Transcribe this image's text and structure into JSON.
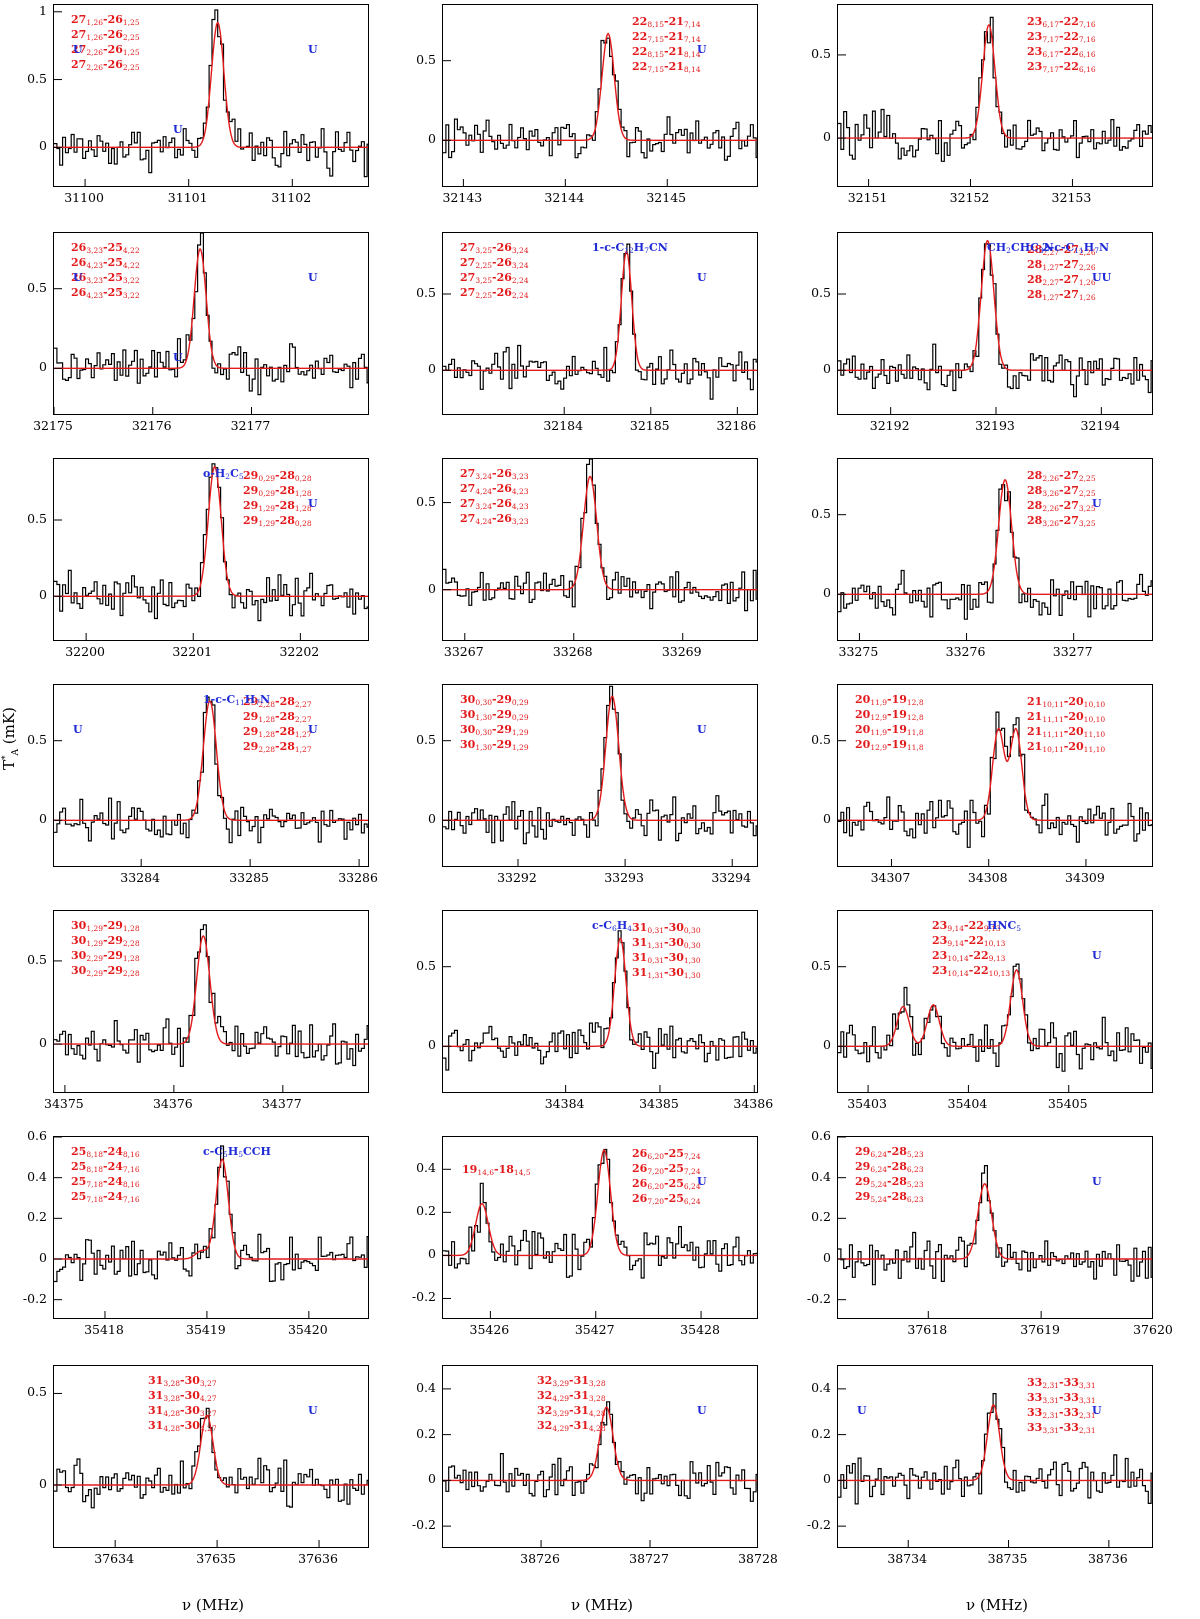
{
  "figure": {
    "ylabel": "T*A (mK)",
    "xlabel": "ν (MHz)",
    "colors": {
      "data": "#000000",
      "model": "#e31a1c",
      "other": "#1f2bd6"
    }
  },
  "chart_data": [
    {
      "id": "p1",
      "type": "line",
      "xlim": [
        31099.7,
        31102.75
      ],
      "ylim": [
        -0.3,
        1.05
      ],
      "xticks": [
        31100,
        31101,
        31102
      ],
      "yticks": [
        0,
        0.5,
        1
      ],
      "lines": [
        {
          "x": 31101.28,
          "h": 0.92,
          "w": 0.06
        }
      ],
      "notes": [
        {
          "color": "red",
          "text": "27(1,26)-26(1,25) / 27(1,26)-26(2,25) / 27(2,26)-26(1,25) / 27(2,26)-26(2,25)",
          "lines": [
            "27_1,26-26_1,25",
            "27_1,26-26_2,25",
            "27_2,26-26_1,25",
            "27_2,26-26_2,25"
          ],
          "pos": "tl"
        },
        {
          "color": "blue",
          "text": "U",
          "lines": [
            "U"
          ],
          "pos": "u1"
        },
        {
          "color": "blue",
          "text": "U",
          "lines": [
            "U"
          ],
          "pos": "u2"
        },
        {
          "color": "blue",
          "text": "U",
          "lines": [
            "U"
          ],
          "pos": "u3"
        }
      ]
    },
    {
      "id": "p2",
      "type": "line",
      "xlim": [
        32142.8,
        32145.9
      ],
      "ylim": [
        -0.3,
        0.85
      ],
      "xticks": [
        32143,
        32144,
        32145
      ],
      "yticks": [
        0,
        0.5
      ],
      "lines": [
        {
          "x": 32144.42,
          "h": 0.67,
          "w": 0.06
        }
      ],
      "notes": [
        {
          "color": "red",
          "lines": [
            "22_8,15-21_7,14",
            "22_7,15-21_7,14",
            "22_8,15-21_8,14",
            "22_7,15-21_8,14"
          ],
          "pos": "tr"
        },
        {
          "color": "blue",
          "lines": [
            "U"
          ],
          "pos": "u1"
        }
      ]
    },
    {
      "id": "p3",
      "type": "line",
      "xlim": [
        32150.7,
        32153.8
      ],
      "ylim": [
        -0.3,
        0.8
      ],
      "xticks": [
        32151,
        32152,
        32153
      ],
      "yticks": [
        0,
        0.5
      ],
      "lines": [
        {
          "x": 32152.18,
          "h": 0.68,
          "w": 0.06
        }
      ],
      "notes": [
        {
          "color": "red",
          "lines": [
            "23_6,17-22_7,16",
            "23_7,17-22_7,16",
            "23_6,17-22_6,16",
            "23_7,17-22_6,16"
          ],
          "pos": "tr"
        }
      ]
    },
    {
      "id": "p4",
      "type": "line",
      "xlim": [
        32175,
        32178.2
      ],
      "ylim": [
        -0.3,
        0.85
      ],
      "xticks": [
        32175,
        32176,
        32177
      ],
      "yticks": [
        0,
        0.5
      ],
      "lines": [
        {
          "x": 32176.48,
          "h": 0.75,
          "w": 0.06
        }
      ],
      "notes": [
        {
          "color": "red",
          "lines": [
            "26_3,23-25_4,22",
            "26_4,23-25_4,22",
            "26_3,23-25_3,22",
            "26_4,23-25_3,22"
          ],
          "pos": "tl"
        },
        {
          "color": "blue",
          "lines": [
            "U"
          ],
          "pos": "u1"
        },
        {
          "color": "blue",
          "lines": [
            "U"
          ],
          "pos": "u2"
        },
        {
          "color": "blue",
          "lines": [
            "U"
          ],
          "pos": "u3"
        }
      ]
    },
    {
      "id": "p5",
      "type": "line",
      "xlim": [
        32182.6,
        32186.25
      ],
      "ylim": [
        -0.3,
        0.9
      ],
      "xticks": [
        32184,
        32185,
        32186
      ],
      "yticks": [
        0,
        0.5
      ],
      "lines": [
        {
          "x": 32184.72,
          "h": 0.78,
          "w": 0.06
        }
      ],
      "notes": [
        {
          "color": "red",
          "lines": [
            "27_3,25-26_3,24",
            "27_2,25-26_3,24",
            "27_3,25-26_2,24",
            "27_2,25-26_2,24"
          ],
          "pos": "tl"
        },
        {
          "color": "blue",
          "lines": [
            "1-c-C12H7CN"
          ],
          "pos": "mol1"
        },
        {
          "color": "blue",
          "lines": [
            "U"
          ],
          "pos": "u1"
        }
      ]
    },
    {
      "id": "p6",
      "type": "line",
      "xlim": [
        32191.5,
        32194.5
      ],
      "ylim": [
        -0.3,
        0.9
      ],
      "xticks": [
        32192,
        32193,
        32194
      ],
      "yticks": [
        0,
        0.5
      ],
      "lines": [
        {
          "x": 32192.92,
          "h": 0.85,
          "w": 0.06
        }
      ],
      "notes": [
        {
          "color": "red",
          "lines": [
            "28_2,27-27_2,26",
            "28_1,27-27_2,26",
            "28_2,27-27_1,26",
            "28_1,27-27_1,26"
          ],
          "pos": "tr"
        },
        {
          "color": "blue",
          "lines": [
            "CH2CHC3N"
          ],
          "pos": "mol1"
        },
        {
          "color": "blue",
          "lines": [
            "2-c-C11H7N"
          ],
          "pos": "mol2"
        },
        {
          "color": "blue",
          "lines": [
            "UU"
          ],
          "pos": "u1"
        }
      ]
    },
    {
      "id": "p7",
      "type": "line",
      "xlim": [
        32199.7,
        32202.65
      ],
      "ylim": [
        -0.3,
        0.9
      ],
      "xticks": [
        32200,
        32201,
        32202
      ],
      "yticks": [
        0,
        0.5
      ],
      "lines": [
        {
          "x": 32201.2,
          "h": 0.85,
          "w": 0.06
        }
      ],
      "notes": [
        {
          "color": "red",
          "lines": [
            "29_0,29-28_0,28",
            "29_0,29-28_1,28",
            "29_1,29-28_1,28",
            "29_1,29-28_0,28"
          ],
          "pos": "tr"
        },
        {
          "color": "blue",
          "lines": [
            "o-H2C5"
          ],
          "pos": "mol1"
        },
        {
          "color": "blue",
          "lines": [
            "U"
          ],
          "pos": "u1"
        }
      ]
    },
    {
      "id": "p8",
      "type": "line",
      "xlim": [
        33266.8,
        33269.7
      ],
      "ylim": [
        -0.3,
        0.75
      ],
      "xticks": [
        33267,
        33268,
        33269
      ],
      "yticks": [
        0,
        0.5
      ],
      "lines": [
        {
          "x": 33268.15,
          "h": 0.65,
          "w": 0.06
        }
      ],
      "notes": [
        {
          "color": "red",
          "lines": [
            "27_3,24-26_3,23",
            "27_4,24-26_4,23",
            "27_3,24-26_4,23",
            "27_4,24-26_3,23"
          ],
          "pos": "tl"
        }
      ]
    },
    {
      "id": "p9",
      "type": "line",
      "xlim": [
        33274.8,
        33277.75
      ],
      "ylim": [
        -0.3,
        0.85
      ],
      "xticks": [
        33275,
        33276,
        33277
      ],
      "yticks": [
        0,
        0.5
      ],
      "lines": [
        {
          "x": 33276.36,
          "h": 0.72,
          "w": 0.06
        }
      ],
      "notes": [
        {
          "color": "red",
          "lines": [
            "28_2,26-27_2,25",
            "28_3,26-27_2,25",
            "28_2,26-27_3,25",
            "28_3,26-27_3,25"
          ],
          "pos": "tr"
        },
        {
          "color": "blue",
          "lines": [
            "U"
          ],
          "pos": "u1"
        }
      ]
    },
    {
      "id": "p10",
      "type": "line",
      "xlim": [
        33283.2,
        33286.1
      ],
      "ylim": [
        -0.3,
        0.85
      ],
      "xticks": [
        33284,
        33285,
        33286
      ],
      "yticks": [
        0,
        0.5
      ],
      "lines": [
        {
          "x": 33284.63,
          "h": 0.75,
          "w": 0.06
        }
      ],
      "notes": [
        {
          "color": "red",
          "lines": [
            "29_2,28-28_2,27",
            "29_1,28-28_2,27",
            "29_1,28-28_1,27",
            "29_2,28-28_1,27"
          ],
          "pos": "tr"
        },
        {
          "color": "blue",
          "lines": [
            "1-c-C11H7N"
          ],
          "pos": "mol1"
        },
        {
          "color": "blue",
          "lines": [
            "U"
          ],
          "pos": "u1"
        },
        {
          "color": "blue",
          "lines": [
            "U"
          ],
          "pos": "u2"
        }
      ]
    },
    {
      "id": "p11",
      "type": "line",
      "xlim": [
        33291.3,
        33294.25
      ],
      "ylim": [
        -0.3,
        0.85
      ],
      "xticks": [
        33292,
        33293,
        33294
      ],
      "yticks": [
        0,
        0.5
      ],
      "lines": [
        {
          "x": 33292.88,
          "h": 0.78,
          "w": 0.06
        }
      ],
      "notes": [
        {
          "color": "red",
          "lines": [
            "30_0,30-29_0,29",
            "30_1,30-29_0,29",
            "30_0,30-29_1,29",
            "30_1,30-29_1,29"
          ],
          "pos": "tl"
        },
        {
          "color": "blue",
          "lines": [
            "U"
          ],
          "pos": "u1"
        }
      ]
    },
    {
      "id": "p12",
      "type": "line",
      "xlim": [
        34306.45,
        34309.7
      ],
      "ylim": [
        -0.3,
        0.85
      ],
      "xticks": [
        34307,
        34308,
        34309
      ],
      "yticks": [
        0,
        0.5
      ],
      "lines": [
        {
          "x": 34308.1,
          "h": 0.57,
          "w": 0.06
        },
        {
          "x": 34308.28,
          "h": 0.57,
          "w": 0.06
        }
      ],
      "notes": [
        {
          "color": "red",
          "lines": [
            "20_11,9-19_12,8",
            "20_12,9-19_12,8",
            "20_11,9-19_11,8",
            "20_12,9-19_11,8"
          ],
          "pos": "tl"
        },
        {
          "color": "red",
          "lines": [
            "21_10,11-20_10,10",
            "21_11,11-20_10,10",
            "21_11,11-20_11,10",
            "21_10,11-20_11,10"
          ],
          "pos": "tr"
        }
      ]
    },
    {
      "id": "p13",
      "type": "line",
      "xlim": [
        34374.9,
        34377.8
      ],
      "ylim": [
        -0.3,
        0.8
      ],
      "xticks": [
        34375,
        34376,
        34377
      ],
      "yticks": [
        0,
        0.5
      ],
      "lines": [
        {
          "x": 34376.27,
          "h": 0.65,
          "w": 0.06
        }
      ],
      "notes": [
        {
          "color": "red",
          "lines": [
            "30_1,29-29_1,28",
            "30_1,29-29_2,28",
            "30_2,29-29_1,28",
            "30_2,29-29_2,28"
          ],
          "pos": "tl"
        }
      ]
    },
    {
      "id": "p14",
      "type": "line",
      "xlim": [
        34382.7,
        34386.05
      ],
      "ylim": [
        -0.3,
        0.85
      ],
      "xticks": [
        34384,
        34385,
        34386
      ],
      "yticks": [
        0,
        0.5
      ],
      "lines": [
        {
          "x": 34384.58,
          "h": 0.68,
          "w": 0.06
        }
      ],
      "notes": [
        {
          "color": "red",
          "lines": [
            "31_0,31-30_0,30",
            "31_1,31-30_0,30",
            "31_0,31-30_1,30",
            "31_1,31-30_1,30"
          ],
          "pos": "tr"
        },
        {
          "color": "blue",
          "lines": [
            "c-C6H4"
          ],
          "pos": "mol1"
        }
      ]
    },
    {
      "id": "p15",
      "type": "line",
      "xlim": [
        35402.7,
        35405.85
      ],
      "ylim": [
        -0.3,
        0.85
      ],
      "xticks": [
        35403,
        35404,
        35405
      ],
      "yticks": [
        0,
        0.5
      ],
      "lines": [
        {
          "x": 35403.35,
          "h": 0.25,
          "w": 0.06
        },
        {
          "x": 35403.65,
          "h": 0.26,
          "w": 0.06
        },
        {
          "x": 35404.48,
          "h": 0.48,
          "w": 0.06
        }
      ],
      "notes": [
        {
          "color": "red",
          "lines": [
            "23_9,14-22_9,13",
            "23_9,14-22_10,13",
            "23_10,14-22_9,13",
            "23_10,14-22_10,13"
          ],
          "pos": "tc"
        },
        {
          "color": "blue",
          "lines": [
            "U"
          ],
          "pos": "u1"
        },
        {
          "color": "blue",
          "lines": [
            "HNC5"
          ],
          "pos": "mol1"
        }
      ]
    },
    {
      "id": "p16",
      "type": "line",
      "xlim": [
        35417.5,
        35420.6
      ],
      "ylim": [
        -0.3,
        0.6
      ],
      "xticks": [
        35418,
        35419,
        35420
      ],
      "yticks": [
        -0.2,
        0,
        0.2,
        0.4,
        0.6
      ],
      "lines": [
        {
          "x": 35419.15,
          "h": 0.49,
          "w": 0.06
        },
        {
          "x": 35418.95,
          "h": 0.04,
          "w": 0.06
        }
      ],
      "notes": [
        {
          "color": "red",
          "lines": [
            "25_8,18-24_8,16",
            "25_8,18-24_7,16",
            "25_7,18-24_8,16",
            "25_7,18-24_7,16"
          ],
          "pos": "tl"
        },
        {
          "color": "blue",
          "lines": [
            "c-C5H5CCH"
          ],
          "pos": "mol1"
        }
      ]
    },
    {
      "id": "p17",
      "type": "line",
      "xlim": [
        35425.55,
        35428.55
      ],
      "ylim": [
        -0.3,
        0.55
      ],
      "xticks": [
        35426,
        35427,
        35428
      ],
      "yticks": [
        -0.2,
        0,
        0.2,
        0.4
      ],
      "lines": [
        {
          "x": 35425.92,
          "h": 0.24,
          "w": 0.06
        },
        {
          "x": 35427.08,
          "h": 0.49,
          "w": 0.06
        }
      ],
      "notes": [
        {
          "color": "red",
          "lines": [
            "19_14,6-18_14,5"
          ],
          "pos": "l1"
        },
        {
          "color": "red",
          "lines": [
            "26_6,20-25_7,24",
            "26_7,20-25_7,24",
            "26_6,20-25_6,24",
            "26_7,20-25_6,24"
          ],
          "pos": "tr"
        },
        {
          "color": "blue",
          "lines": [
            "U"
          ],
          "pos": "u1"
        }
      ]
    },
    {
      "id": "p18",
      "type": "line",
      "xlim": [
        37617.2,
        37620
      ],
      "ylim": [
        -0.3,
        0.6
      ],
      "xticks": [
        37618,
        37619,
        37620
      ],
      "yticks": [
        -0.2,
        0,
        0.2,
        0.4,
        0.6
      ],
      "lines": [
        {
          "x": 37618.5,
          "h": 0.37,
          "w": 0.06
        }
      ],
      "notes": [
        {
          "color": "red",
          "lines": [
            "29_6,24-28_5,23",
            "29_6,24-28_6,23",
            "29_5,24-28_5,23",
            "29_5,24-28_6,23"
          ],
          "pos": "tl"
        },
        {
          "color": "blue",
          "lines": [
            "U"
          ],
          "pos": "u1"
        }
      ]
    },
    {
      "id": "p19",
      "type": "line",
      "xlim": [
        37633.4,
        37636.5
      ],
      "ylim": [
        -0.35,
        0.65
      ],
      "xticks": [
        37634,
        37635,
        37636
      ],
      "yticks": [
        0,
        0.5
      ],
      "lines": [
        {
          "x": 37634.9,
          "h": 0.38,
          "w": 0.06
        }
      ],
      "notes": [
        {
          "color": "red",
          "lines": [
            "31_3,28-30_3,27",
            "31_3,28-30_4,27",
            "31_4,28-30_3,27",
            "31_4,28-30_4,27"
          ],
          "pos": "tc"
        },
        {
          "color": "blue",
          "lines": [
            "U"
          ],
          "pos": "u1"
        }
      ]
    },
    {
      "id": "p20",
      "type": "line",
      "xlim": [
        38725.1,
        38728
      ],
      "ylim": [
        -0.3,
        0.5
      ],
      "xticks": [
        38726,
        38727,
        38728
      ],
      "yticks": [
        -0.2,
        0,
        0.2,
        0.4
      ],
      "lines": [
        {
          "x": 38726.6,
          "h": 0.32,
          "w": 0.06
        }
      ],
      "notes": [
        {
          "color": "red",
          "lines": [
            "32_3,29-31_3,28",
            "32_4,29-31_3,28",
            "32_3,29-31_4,28",
            "32_4,29-31_4,28"
          ],
          "pos": "tc"
        },
        {
          "color": "blue",
          "lines": [
            "U"
          ],
          "pos": "u1"
        }
      ]
    },
    {
      "id": "p21",
      "type": "line",
      "xlim": [
        38733.3,
        38736.45
      ],
      "ylim": [
        -0.3,
        0.5
      ],
      "xticks": [
        38734,
        38735,
        38736
      ],
      "yticks": [
        -0.2,
        0,
        0.2,
        0.4
      ],
      "lines": [
        {
          "x": 38734.85,
          "h": 0.33,
          "w": 0.06
        }
      ],
      "notes": [
        {
          "color": "red",
          "lines": [
            "33_2,31-33_3,31",
            "33_3,31-33_3,31",
            "33_2,31-33_2,31",
            "33_3,31-33_2,31"
          ],
          "pos": "tr"
        },
        {
          "color": "blue",
          "lines": [
            "U"
          ],
          "pos": "u1"
        },
        {
          "color": "blue",
          "lines": [
            "U"
          ],
          "pos": "u2"
        }
      ]
    }
  ]
}
